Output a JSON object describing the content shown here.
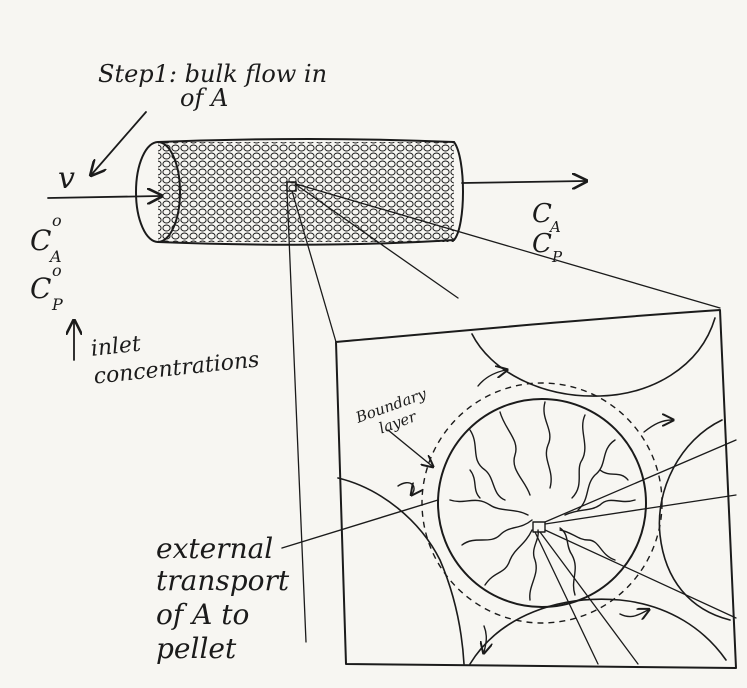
{
  "labels": {
    "step1_line1": "Step1: bulk flow in",
    "step1_line2": "of A",
    "flow_symbol": "v",
    "inlet_ca": "C",
    "inlet_ca_sup": "o",
    "inlet_ca_sub": "A",
    "inlet_cp": "C",
    "inlet_cp_sup": "o",
    "inlet_cp_sub": "P",
    "outlet_ca": "C",
    "outlet_ca_sub": "A",
    "outlet_cp": "C",
    "outlet_cp_sub": "P",
    "inlet_line1": "inlet",
    "inlet_line2": "concentrations",
    "boundary_line1": "Boundary",
    "boundary_line2": "layer",
    "external_line1": "external",
    "external_line2": "transport",
    "external_line3": "of A to",
    "external_line4": "pellet"
  },
  "colors": {
    "ink": "#1b1b1b",
    "paper": "#f7f6f2"
  }
}
